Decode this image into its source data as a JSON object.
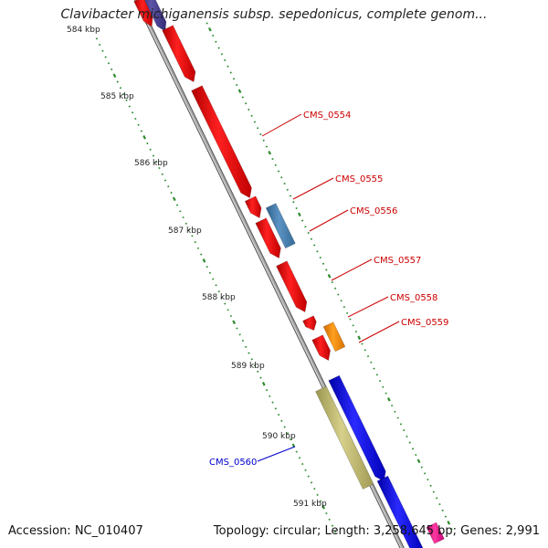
{
  "title": "Clavibacter michiganensis subsp. sepedonicus, complete genom...",
  "footer": {
    "accession": "Accession: NC_010407",
    "summary": "Topology: circular; Length: 3,258,645 bp; Genes: 2,991"
  },
  "colors": {
    "backbone": "#8c8c8c",
    "tick": "#2e8b2e",
    "gene_red": "#ff1010",
    "gene_steel": "#4682b4",
    "gene_orange": "#ff8c00",
    "gene_olive": "#bdb76b",
    "gene_blue": "#0a0aff",
    "gene_magenta": "#ff1493",
    "gene_purple": "#483d8b",
    "label_red": "#cc0000",
    "label_blue": "#0000cc"
  },
  "scale": {
    "unit": "kbp",
    "labels": [
      "584 kbp",
      "585 kbp",
      "586 kbp",
      "587 kbp",
      "588 kbp",
      "589 kbp",
      "590 kbp",
      "591 kbp"
    ]
  },
  "genes": [
    {
      "name": "CMS_0554",
      "strand": "forward"
    },
    {
      "name": "CMS_0555",
      "strand": "forward"
    },
    {
      "name": "CMS_0556",
      "strand": "forward"
    },
    {
      "name": "CMS_0557",
      "strand": "forward"
    },
    {
      "name": "CMS_0558",
      "strand": "forward"
    },
    {
      "name": "CMS_0559",
      "strand": "forward"
    },
    {
      "name": "CMS_0560",
      "strand": "forward"
    }
  ]
}
